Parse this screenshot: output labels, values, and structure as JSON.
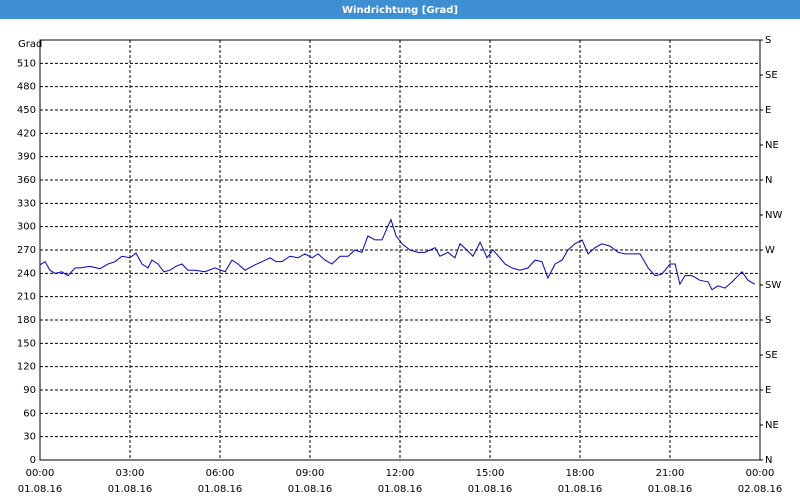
{
  "chart_data": {
    "type": "line",
    "title": "Windrichtung [Grad]",
    "y_label": "Grad",
    "xlim": [
      0,
      24
    ],
    "ylim": [
      0,
      540
    ],
    "y2lim": [
      0,
      540
    ],
    "xticks": [
      {
        "value": 0,
        "label": "00:00"
      },
      {
        "value": 3,
        "label": "03:00"
      },
      {
        "value": 6,
        "label": "06:00"
      },
      {
        "value": 9,
        "label": "09:00"
      },
      {
        "value": 12,
        "label": "12:00"
      },
      {
        "value": 15,
        "label": "15:00"
      },
      {
        "value": 18,
        "label": "18:00"
      },
      {
        "value": 21,
        "label": "21:00"
      },
      {
        "value": 24,
        "label": "00:00"
      }
    ],
    "xtick_dates": [
      "01.08.16",
      "01.08.16",
      "01.08.16",
      "01.08.16",
      "01.08.16",
      "01.08.16",
      "01.08.16",
      "01.08.16",
      "02.08.16"
    ],
    "yticks": [
      0,
      30,
      60,
      90,
      120,
      150,
      180,
      210,
      240,
      270,
      300,
      330,
      360,
      390,
      420,
      450,
      480,
      510
    ],
    "y2ticks": [
      {
        "value": 0,
        "label": "N"
      },
      {
        "value": 45,
        "label": "NE"
      },
      {
        "value": 90,
        "label": "E"
      },
      {
        "value": 135,
        "label": "SE"
      },
      {
        "value": 180,
        "label": "S"
      },
      {
        "value": 225,
        "label": "SW"
      },
      {
        "value": 270,
        "label": "W"
      },
      {
        "value": 315,
        "label": "NW"
      },
      {
        "value": 360,
        "label": "N"
      },
      {
        "value": 405,
        "label": "NE"
      },
      {
        "value": 450,
        "label": "E"
      },
      {
        "value": 495,
        "label": "SE"
      },
      {
        "value": 540,
        "label": "S"
      }
    ],
    "grid": true,
    "series": [
      {
        "color": "#0000c8",
        "x": [
          0,
          0.17,
          0.33,
          0.5,
          0.73,
          0.93,
          1.17,
          1.33,
          1.67,
          2,
          2.27,
          2.5,
          2.73,
          3,
          3.2,
          3.4,
          3.6,
          3.73,
          3.93,
          4.13,
          4.33,
          4.53,
          4.73,
          4.93,
          5.17,
          5.5,
          5.83,
          6.17,
          6.4,
          6.6,
          6.83,
          7.17,
          7.4,
          7.67,
          7.87,
          8.07,
          8.33,
          8.6,
          8.83,
          9.07,
          9.27,
          9.5,
          9.73,
          10,
          10.27,
          10.5,
          10.73,
          10.93,
          11.17,
          11.4,
          11.6,
          11.7,
          11.87,
          12.07,
          12.33,
          12.6,
          12.83,
          13.17,
          13.33,
          13.6,
          13.83,
          14,
          14.23,
          14.43,
          14.67,
          14.9,
          15.1,
          15.33,
          15.5,
          15.73,
          16,
          16.27,
          16.5,
          16.73,
          16.93,
          17.17,
          17.4,
          17.6,
          17.83,
          18.07,
          18.27,
          18.5,
          18.73,
          19,
          19.27,
          19.5,
          19.73,
          20,
          20.27,
          20.5,
          20.73,
          21,
          21.17,
          21.33,
          21.5,
          21.73,
          22,
          22.27,
          22.4,
          22.6,
          22.83,
          23.07,
          23.27,
          23.4,
          23.6,
          23.83
        ],
        "values": [
          251,
          255,
          244,
          240,
          242,
          237,
          247,
          247,
          249,
          246,
          252,
          255,
          262,
          260,
          266,
          252,
          247,
          257,
          252,
          242,
          244,
          249,
          252,
          244,
          244,
          242,
          247,
          242,
          257,
          252,
          244,
          251,
          255,
          260,
          255,
          255,
          262,
          260,
          265,
          260,
          265,
          257,
          252,
          262,
          262,
          270,
          267,
          288,
          283,
          283,
          301,
          309,
          288,
          278,
          270,
          267,
          267,
          273,
          262,
          267,
          260,
          278,
          270,
          262,
          280,
          260,
          270,
          260,
          252,
          247,
          244,
          247,
          257,
          255,
          234,
          252,
          257,
          270,
          278,
          283,
          265,
          273,
          278,
          275,
          267,
          265,
          265,
          265,
          247,
          237,
          239,
          252,
          252,
          226,
          237,
          237,
          231,
          229,
          219,
          224,
          221,
          229,
          237,
          242,
          231,
          226
        ]
      }
    ]
  }
}
